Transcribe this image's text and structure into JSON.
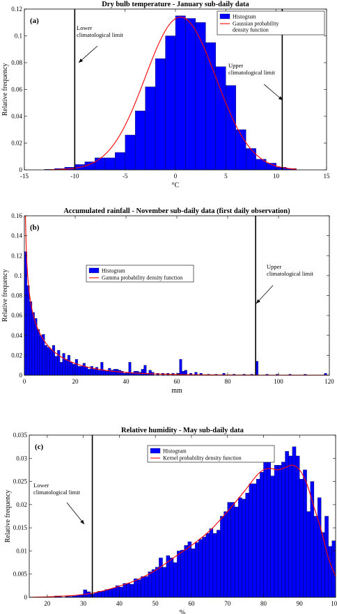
{
  "chart_data": [
    {
      "type": "bar",
      "panel": "(a)",
      "title": "Dry bulb temperature - January sub-daily data",
      "xlabel": "°C",
      "ylabel": "Relative frequency",
      "xlim": [
        -15,
        15
      ],
      "ylim": [
        0,
        0.12
      ],
      "xticks": [
        -15,
        -10,
        -5,
        0,
        5,
        10,
        15
      ],
      "yticks": [
        0,
        0.02,
        0.04,
        0.06,
        0.08,
        0.1,
        0.12
      ],
      "grid": false,
      "legend": {
        "position": "top-right",
        "entries": [
          "Histogram",
          "Gaussian probability density function"
        ]
      },
      "colors": {
        "bar": "#0000ff",
        "curve": "#ff0000",
        "limit": "#000000"
      },
      "histogram": {
        "bin_width": 1,
        "bin_start": [
          -13,
          -12,
          -11,
          -10,
          -9,
          -8,
          -7,
          -6,
          -5,
          -4,
          -3,
          -2,
          -1,
          0,
          1,
          2,
          3,
          4,
          5,
          6,
          7,
          8,
          9,
          10,
          11
        ],
        "values": [
          0.0004,
          0.001,
          0.002,
          0.004,
          0.006,
          0.009,
          0.009,
          0.013,
          0.026,
          0.044,
          0.062,
          0.083,
          0.1,
          0.115,
          0.113,
          0.11,
          0.095,
          0.077,
          0.063,
          0.03,
          0.016,
          0.008,
          0.005,
          0.002,
          0.001
        ]
      },
      "curve": {
        "name": "Gaussian probability density function",
        "distribution": "normal",
        "mean": 0.5,
        "std": 3.5
      },
      "limits": [
        {
          "x": -10,
          "label": "Lower climatological limit"
        },
        {
          "x": 10.6,
          "label": "Upper climatological limit"
        }
      ]
    },
    {
      "type": "bar",
      "panel": "(b)",
      "title": "Accumulated rainfall - November sub-daily data (first daily observation)",
      "xlabel": "mm",
      "ylabel": "Relative frequency",
      "xlim": [
        0,
        120
      ],
      "ylim": [
        0,
        0.16
      ],
      "xticks": [
        0,
        20,
        40,
        60,
        80,
        100,
        120
      ],
      "yticks": [
        0,
        0.02,
        0.04,
        0.06,
        0.08,
        0.1,
        0.12,
        0.14,
        0.16
      ],
      "grid": false,
      "legend": {
        "position": "center-left",
        "entries": [
          "Histogram",
          "Gamma probability density function"
        ]
      },
      "colors": {
        "bar": "#0000ff",
        "curve": "#ff0000",
        "limit": "#000000"
      },
      "histogram": {
        "bin_width": 1,
        "bin_start": [
          0,
          1,
          2,
          3,
          4,
          5,
          6,
          7,
          8,
          9,
          10,
          11,
          12,
          13,
          14,
          15,
          16,
          17,
          18,
          19,
          20,
          21,
          22,
          23,
          24,
          25,
          26,
          27,
          28,
          29,
          30,
          31,
          32,
          33,
          34,
          35,
          36,
          37,
          38,
          39,
          40,
          41,
          42,
          43,
          44,
          45,
          46,
          47,
          48,
          49,
          50,
          52,
          54,
          56,
          58,
          60,
          61,
          62,
          63,
          65,
          67,
          69,
          72,
          75,
          78,
          82,
          86,
          89,
          91,
          95,
          99,
          104,
          110,
          118
        ],
        "values": [
          0.124,
          0.09,
          0.074,
          0.063,
          0.057,
          0.046,
          0.04,
          0.041,
          0.03,
          0.028,
          0.026,
          0.03,
          0.019,
          0.025,
          0.013,
          0.022,
          0.016,
          0.02,
          0.013,
          0.011,
          0.016,
          0.009,
          0.009,
          0.012,
          0.008,
          0.006,
          0.009,
          0.006,
          0.008,
          0.005,
          0.013,
          0.005,
          0.004,
          0.007,
          0.005,
          0.006,
          0.006,
          0.005,
          0.004,
          0.002,
          0.003,
          0.013,
          0.002,
          0.004,
          0.004,
          0.003,
          0.006,
          0.01,
          0.002,
          0.005,
          0.003,
          0.002,
          0.002,
          0.002,
          0.002,
          0.002,
          0.016,
          0.004,
          0.005,
          0.002,
          0.003,
          0.002,
          0.001,
          0.001,
          0.002,
          0.001,
          0.001,
          0.001,
          0.014,
          0.001,
          0.001,
          0.001,
          0.001,
          0.002
        ]
      },
      "curve": {
        "name": "Gamma probability density function",
        "distribution": "gamma",
        "shape": 0.62,
        "scale": 17
      },
      "limits": [
        {
          "x": 91,
          "label": "Upper climatological limit"
        }
      ]
    },
    {
      "type": "bar",
      "panel": "(c)",
      "title": "Relative humidity - May sub-daily data",
      "xlabel": "%",
      "ylabel": "Relative frequency",
      "xlim": [
        15,
        100
      ],
      "ylim": [
        0,
        0.035
      ],
      "xticks": [
        20,
        30,
        40,
        50,
        60,
        70,
        80,
        90,
        100
      ],
      "yticks": [
        0,
        0.005,
        0.01,
        0.015,
        0.02,
        0.025,
        0.03,
        0.035
      ],
      "grid": false,
      "legend": {
        "position": "top-center",
        "entries": [
          "Histogram",
          "Kernel probability density function"
        ]
      },
      "colors": {
        "bar": "#0000ff",
        "curve": "#ff0000",
        "limit": "#000000"
      },
      "histogram": {
        "bin_width": 1,
        "bin_start": [
          22,
          23,
          25,
          26,
          27,
          28,
          29,
          30,
          31,
          32,
          33,
          34,
          35,
          36,
          37,
          38,
          39,
          40,
          41,
          42,
          43,
          44,
          45,
          46,
          47,
          48,
          49,
          50,
          51,
          52,
          53,
          54,
          55,
          56,
          57,
          58,
          59,
          60,
          61,
          62,
          63,
          64,
          65,
          66,
          67,
          68,
          69,
          70,
          71,
          72,
          73,
          74,
          75,
          76,
          77,
          78,
          79,
          80,
          81,
          82,
          83,
          84,
          85,
          86,
          87,
          88,
          89,
          90,
          91,
          92,
          93,
          94,
          95,
          96,
          97,
          98,
          99
        ],
        "values": [
          0.0003,
          0.0003,
          0.0002,
          0.0002,
          0.0003,
          0.0005,
          0.0006,
          0.0016,
          0.0012,
          0.0007,
          0.001,
          0.0013,
          0.0013,
          0.0017,
          0.0018,
          0.002,
          0.0025,
          0.0022,
          0.003,
          0.003,
          0.0028,
          0.004,
          0.0038,
          0.0045,
          0.0045,
          0.0055,
          0.006,
          0.0065,
          0.0085,
          0.0065,
          0.009,
          0.0085,
          0.0075,
          0.01,
          0.0102,
          0.0112,
          0.012,
          0.0105,
          0.0118,
          0.0125,
          0.013,
          0.0138,
          0.0148,
          0.0138,
          0.0145,
          0.0175,
          0.0185,
          0.0205,
          0.0205,
          0.0195,
          0.0215,
          0.0212,
          0.0225,
          0.0245,
          0.0245,
          0.0255,
          0.027,
          0.0305,
          0.0305,
          0.0262,
          0.0285,
          0.0285,
          0.0292,
          0.0315,
          0.0305,
          0.0325,
          0.0305,
          0.0255,
          0.0275,
          0.0185,
          0.025,
          0.0175,
          0.0215,
          0.014,
          0.0175,
          0.011,
          0.0122
        ]
      },
      "curve": {
        "name": "Kernel probability density function",
        "x": [
          15,
          20,
          25,
          30,
          35,
          40,
          45,
          50,
          55,
          60,
          65,
          70,
          75,
          78,
          80,
          82,
          84,
          86,
          88,
          90,
          92,
          94,
          96,
          98,
          100
        ],
        "y": [
          0,
          0.0001,
          0.0003,
          0.0006,
          0.0013,
          0.0024,
          0.0038,
          0.0058,
          0.0085,
          0.0112,
          0.0143,
          0.0185,
          0.0232,
          0.0262,
          0.0275,
          0.0278,
          0.0275,
          0.028,
          0.0285,
          0.0275,
          0.0245,
          0.0195,
          0.0145,
          0.0085,
          0.0045
        ]
      },
      "limits": [
        {
          "x": 32.5,
          "label": "Lower climatological limit"
        }
      ]
    }
  ]
}
